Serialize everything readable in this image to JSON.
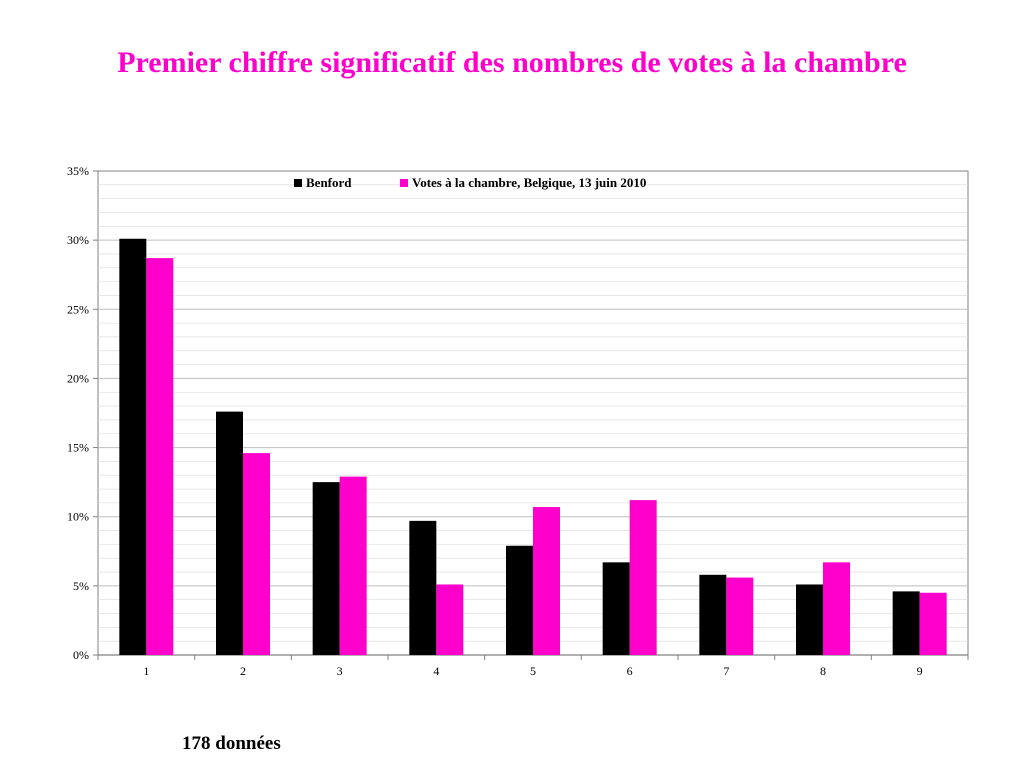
{
  "slide": {
    "title": "Premier chiffre significatif des nombres de votes à la chambre",
    "footnote": "178 données"
  },
  "colors": {
    "title": "#ff00cc",
    "benford": "#000000",
    "votes": "#ff00cc",
    "grid": "#d9d9d9"
  },
  "chart_data": {
    "type": "bar",
    "title": "",
    "xlabel": "",
    "ylabel": "",
    "categories": [
      "1",
      "2",
      "3",
      "4",
      "5",
      "6",
      "7",
      "8",
      "9"
    ],
    "series": [
      {
        "name": "Benford",
        "values": [
          0.301,
          0.176,
          0.125,
          0.097,
          0.079,
          0.067,
          0.058,
          0.051,
          0.046
        ]
      },
      {
        "name": "Votes à la chambre, Belgique, 13 juin 2010",
        "values": [
          0.287,
          0.146,
          0.129,
          0.051,
          0.107,
          0.112,
          0.056,
          0.067,
          0.045
        ]
      }
    ],
    "ylim": [
      0,
      0.35
    ],
    "yticks": [
      "0%",
      "5%",
      "10%",
      "15%",
      "20%",
      "25%",
      "30%",
      "35%"
    ],
    "ytick_values": [
      0,
      0.05,
      0.1,
      0.15,
      0.2,
      0.25,
      0.3,
      0.35
    ],
    "grid": true,
    "legend_position": "top-center"
  }
}
